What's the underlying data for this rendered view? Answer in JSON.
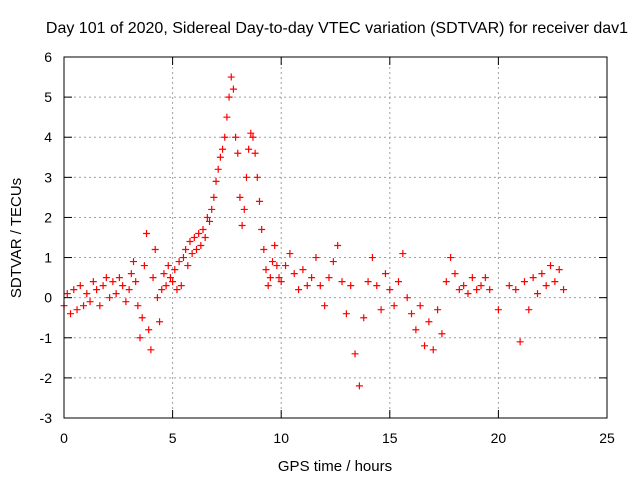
{
  "chart_data": {
    "type": "scatter",
    "title": "Day 101 of 2020, Sidereal Day-to-day VTEC variation (SDTVAR) for receiver dav1",
    "xlabel": "GPS time / hours",
    "ylabel": "SDTVAR / TECUs",
    "xlim": [
      0,
      25
    ],
    "ylim": [
      -3,
      6
    ],
    "xticks": [
      "0",
      "5",
      "10",
      "15",
      "20",
      "25"
    ],
    "yticks": [
      "-3",
      "-2",
      "-1",
      "0",
      "1",
      "2",
      "3",
      "4",
      "5",
      "6"
    ],
    "grid": true,
    "legend": "none",
    "marker": "+",
    "color": "#ff0000",
    "series": [
      {
        "name": "SDTVAR",
        "x": [
          0.0,
          0.15,
          0.3,
          0.45,
          0.6,
          0.75,
          0.9,
          1.05,
          1.2,
          1.35,
          1.5,
          1.65,
          1.8,
          1.95,
          2.1,
          2.25,
          2.4,
          2.55,
          2.7,
          2.85,
          3.0,
          3.1,
          3.2,
          3.3,
          3.4,
          3.5,
          3.6,
          3.7,
          3.8,
          3.9,
          4.0,
          4.1,
          4.2,
          4.3,
          4.4,
          4.5,
          4.6,
          4.7,
          4.8,
          4.9,
          5.0,
          5.1,
          5.2,
          5.3,
          5.4,
          5.5,
          5.6,
          5.7,
          5.8,
          5.9,
          6.0,
          6.1,
          6.2,
          6.3,
          6.4,
          6.5,
          6.6,
          6.7,
          6.8,
          6.9,
          7.0,
          7.1,
          7.2,
          7.3,
          7.4,
          7.5,
          7.6,
          7.7,
          7.8,
          7.9,
          8.0,
          8.1,
          8.2,
          8.3,
          8.4,
          8.5,
          8.6,
          8.7,
          8.8,
          8.9,
          9.0,
          9.1,
          9.2,
          9.3,
          9.4,
          9.5,
          9.6,
          9.7,
          9.8,
          9.9,
          10.0,
          10.2,
          10.4,
          10.6,
          10.8,
          11.0,
          11.2,
          11.4,
          11.6,
          11.8,
          12.0,
          12.2,
          12.4,
          12.6,
          12.8,
          13.0,
          13.2,
          13.4,
          13.6,
          13.8,
          14.0,
          14.2,
          14.4,
          14.6,
          14.8,
          15.0,
          15.2,
          15.4,
          15.6,
          15.8,
          16.0,
          16.2,
          16.4,
          16.6,
          16.8,
          17.0,
          17.2,
          17.4,
          17.6,
          17.8,
          18.0,
          18.2,
          18.4,
          18.6,
          18.8,
          19.0,
          19.2,
          19.4,
          19.6,
          20.0,
          20.5,
          20.8,
          21.0,
          21.2,
          21.4,
          21.6,
          21.8,
          22.0,
          22.2,
          22.4,
          22.6,
          22.8,
          23.0
        ],
        "y": [
          -0.2,
          0.1,
          -0.4,
          0.2,
          -0.3,
          0.3,
          -0.2,
          0.1,
          -0.1,
          0.4,
          0.2,
          -0.2,
          0.3,
          0.5,
          0.0,
          0.4,
          0.1,
          0.5,
          0.3,
          -0.1,
          0.2,
          0.6,
          0.9,
          0.4,
          -0.2,
          -1.0,
          -0.5,
          0.8,
          1.6,
          -0.8,
          -1.3,
          0.5,
          1.2,
          0.0,
          -0.6,
          0.2,
          0.6,
          0.3,
          0.8,
          0.5,
          0.4,
          0.7,
          0.2,
          0.9,
          0.3,
          1.0,
          1.2,
          0.8,
          1.4,
          1.1,
          1.5,
          1.2,
          1.6,
          1.3,
          1.7,
          1.5,
          2.0,
          1.9,
          2.2,
          2.5,
          2.9,
          3.2,
          3.5,
          3.7,
          4.0,
          4.5,
          5.0,
          5.5,
          5.2,
          4.0,
          3.6,
          2.5,
          1.8,
          2.2,
          3.0,
          3.7,
          4.1,
          4.0,
          3.6,
          3.0,
          2.4,
          1.7,
          1.2,
          0.7,
          0.3,
          0.5,
          0.9,
          1.3,
          0.8,
          0.5,
          0.4,
          0.8,
          1.1,
          0.6,
          0.2,
          0.7,
          0.3,
          0.5,
          1.0,
          0.3,
          -0.2,
          0.5,
          0.9,
          1.3,
          0.4,
          -0.4,
          0.3,
          -1.4,
          -2.2,
          -0.5,
          0.4,
          1.0,
          0.3,
          -0.3,
          0.6,
          0.2,
          -0.2,
          0.4,
          1.1,
          0.0,
          -0.4,
          -0.8,
          -0.2,
          -1.2,
          -0.6,
          -1.3,
          -0.3,
          -0.9,
          0.4,
          1.0,
          0.6,
          0.2,
          0.3,
          0.1,
          0.5,
          0.2,
          0.3,
          0.5,
          0.2,
          -0.3,
          0.3,
          0.2,
          -1.1,
          0.4,
          -0.3,
          0.5,
          0.1,
          0.6,
          0.3,
          0.8,
          0.4,
          0.7,
          0.2
        ]
      }
    ]
  }
}
